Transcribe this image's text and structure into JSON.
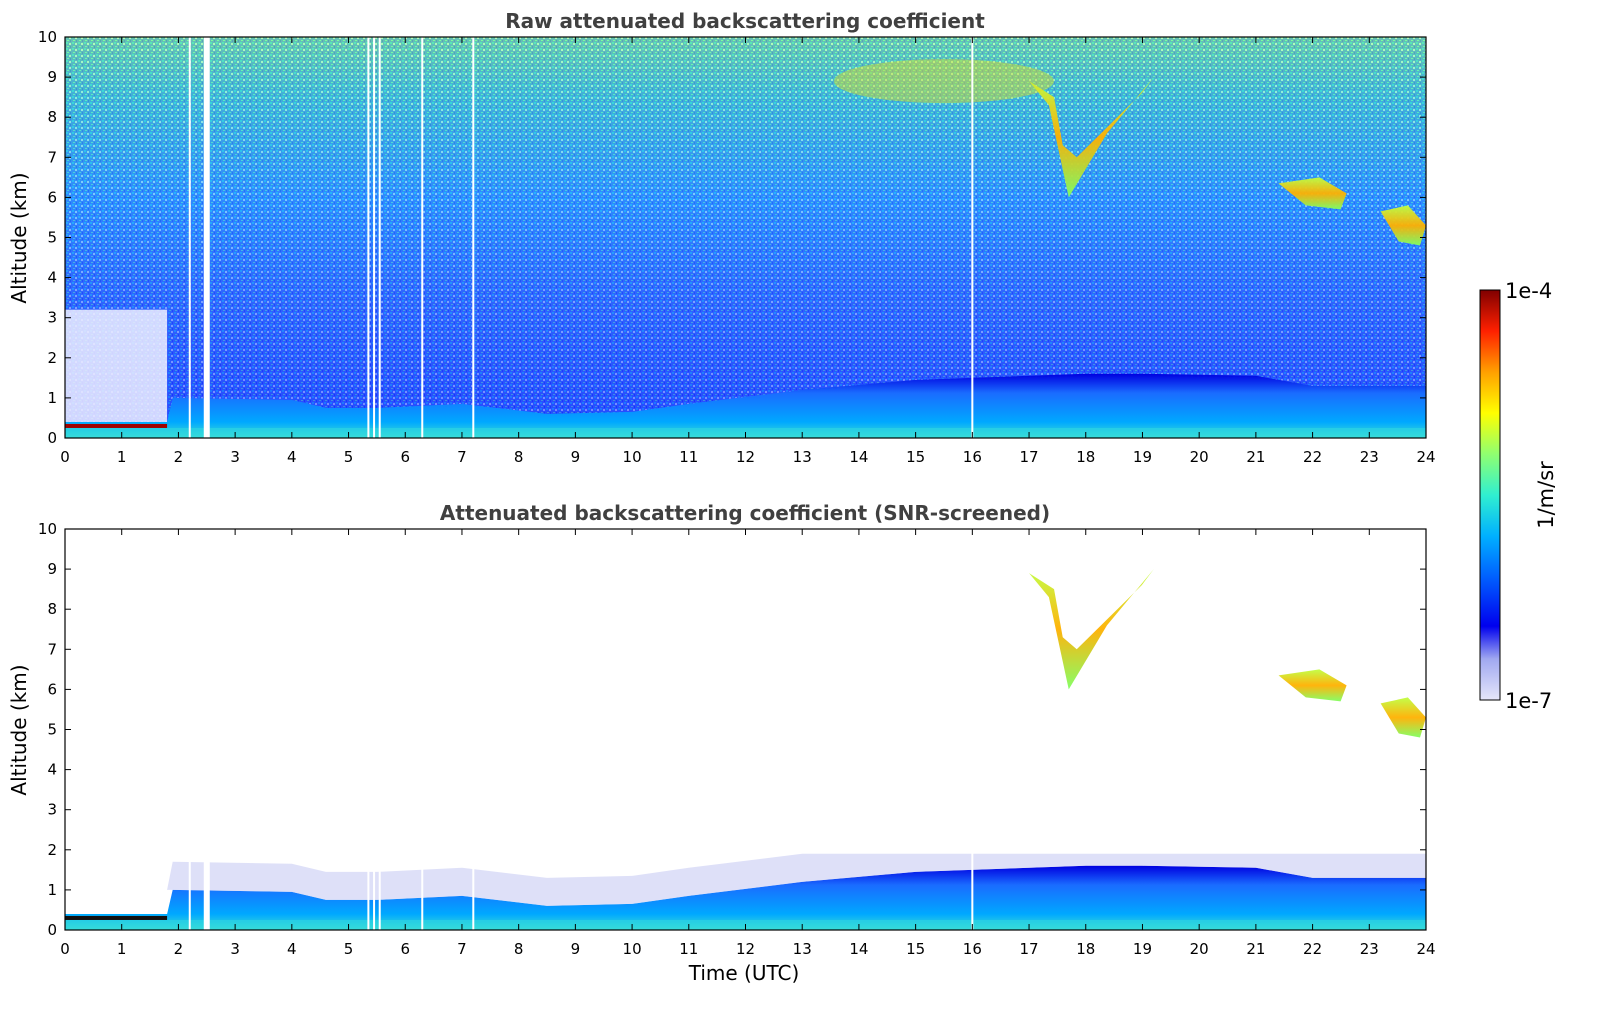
{
  "chart_data": [
    {
      "type": "heatmap",
      "title": "Raw attenuated backscattering coefficient",
      "xlabel": "",
      "ylabel": "Altitude (km)",
      "xlim": [
        0,
        24
      ],
      "ylim": [
        0,
        10
      ],
      "x_ticks": [
        "0",
        "1",
        "2",
        "3",
        "4",
        "5",
        "6",
        "7",
        "8",
        "9",
        "10",
        "11",
        "12",
        "13",
        "14",
        "15",
        "16",
        "17",
        "18",
        "19",
        "20",
        "21",
        "22",
        "23",
        "24"
      ],
      "y_ticks": [
        "0",
        "1",
        "2",
        "3",
        "4",
        "5",
        "6",
        "7",
        "8",
        "9",
        "10"
      ],
      "boundary_layer_top_km": [
        {
          "t": 0,
          "alt": 0.4
        },
        {
          "t": 1.8,
          "alt": 0.4
        },
        {
          "t": 1.9,
          "alt": 1.0
        },
        {
          "t": 4.0,
          "alt": 0.95
        },
        {
          "t": 4.6,
          "alt": 0.75
        },
        {
          "t": 5.5,
          "alt": 0.75
        },
        {
          "t": 7.0,
          "alt": 0.85
        },
        {
          "t": 8.5,
          "alt": 0.6
        },
        {
          "t": 10.0,
          "alt": 0.65
        },
        {
          "t": 11.0,
          "alt": 0.85
        },
        {
          "t": 13.0,
          "alt": 1.2
        },
        {
          "t": 15.0,
          "alt": 1.45
        },
        {
          "t": 18.0,
          "alt": 1.6
        },
        {
          "t": 19.0,
          "alt": 1.6
        },
        {
          "t": 21.0,
          "alt": 1.55
        },
        {
          "t": 22.0,
          "alt": 1.3
        },
        {
          "t": 24.0,
          "alt": 1.3
        }
      ],
      "cloud_features": [
        {
          "t_start": 0.0,
          "t_end": 1.8,
          "alt_km": 0.3,
          "level": "1e-4"
        },
        {
          "t_start": 17.0,
          "t_end": 19.2,
          "alt_range_km": [
            6.0,
            9.0
          ],
          "level": "~1e-5"
        },
        {
          "t_start": 21.4,
          "t_end": 22.6,
          "alt_range_km": [
            5.7,
            6.5
          ],
          "level": "~1e-5"
        },
        {
          "t_start": 23.2,
          "t_end": 24.0,
          "alt_range_km": [
            4.8,
            5.8
          ],
          "level": "~1e-5"
        }
      ],
      "data_gaps_hours": [
        2.2,
        2.5,
        5.35,
        5.45,
        5.55,
        6.3,
        7.2,
        16.0
      ]
    },
    {
      "type": "heatmap",
      "title": "Attenuated backscattering coefficient (SNR-screened)",
      "xlabel": "Time (UTC)",
      "ylabel": "Altitude (km)",
      "xlim": [
        0,
        24
      ],
      "ylim": [
        0,
        10
      ],
      "x_ticks": [
        "0",
        "1",
        "2",
        "3",
        "4",
        "5",
        "6",
        "7",
        "8",
        "9",
        "10",
        "11",
        "12",
        "13",
        "14",
        "15",
        "16",
        "17",
        "18",
        "19",
        "20",
        "21",
        "22",
        "23",
        "24"
      ],
      "y_ticks": [
        "0",
        "1",
        "2",
        "3",
        "4",
        "5",
        "6",
        "7",
        "8",
        "9",
        "10"
      ]
    }
  ],
  "colorbar": {
    "label": "1/m/sr",
    "min_label": "1e-7",
    "max_label": "1e-4",
    "scale": "log",
    "colormap": [
      "#e0e0f8",
      "#aab0f0",
      "#0000ee",
      "#0080ff",
      "#00c0ff",
      "#40ffc0",
      "#a0ff60",
      "#ffff00",
      "#ffa000",
      "#ff3000",
      "#8b0000"
    ]
  }
}
